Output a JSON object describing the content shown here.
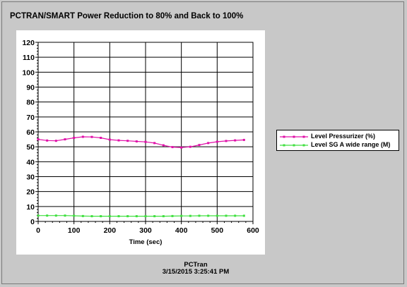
{
  "chart_data": {
    "type": "line",
    "title": "PCTRAN/SMART Power Reduction to 80% and Back to 100%",
    "xlabel": "Time (sec)",
    "ylabel": "",
    "xlim": [
      0,
      600
    ],
    "ylim": [
      0,
      120
    ],
    "xticks": [
      0,
      100,
      200,
      300,
      400,
      500,
      600
    ],
    "yticks": [
      0,
      10,
      20,
      30,
      40,
      50,
      60,
      70,
      80,
      90,
      100,
      110,
      120
    ],
    "grid": true,
    "legend_position": "right",
    "series": [
      {
        "name": "Level Pressurizer (%)",
        "color": "#e010a8",
        "x": [
          0,
          25,
          50,
          75,
          100,
          125,
          150,
          175,
          200,
          225,
          250,
          275,
          300,
          325,
          350,
          375,
          400,
          425,
          450,
          475,
          500,
          525,
          550,
          575
        ],
        "y": [
          55,
          54.2,
          54,
          55,
          56,
          56.7,
          56.6,
          56,
          54.8,
          54.3,
          54,
          53.6,
          53.3,
          52.5,
          51,
          49.8,
          49.5,
          50,
          51.2,
          52.5,
          53.4,
          53.9,
          54.3,
          54.6
        ]
      },
      {
        "name": "Level SG A wide range (M)",
        "color": "#40e040",
        "x": [
          0,
          25,
          50,
          75,
          100,
          125,
          150,
          175,
          200,
          225,
          250,
          275,
          300,
          325,
          350,
          375,
          400,
          425,
          450,
          475,
          500,
          525,
          550,
          575
        ],
        "y": [
          3.9,
          3.9,
          3.9,
          3.9,
          3.8,
          3.6,
          3.5,
          3.5,
          3.5,
          3.5,
          3.5,
          3.5,
          3.5,
          3.5,
          3.5,
          3.6,
          3.7,
          3.7,
          3.8,
          3.8,
          3.8,
          3.8,
          3.8,
          3.8
        ]
      }
    ]
  },
  "footer": {
    "program": "PCTran",
    "timestamp": "3/15/2015 3:25:41 PM"
  }
}
